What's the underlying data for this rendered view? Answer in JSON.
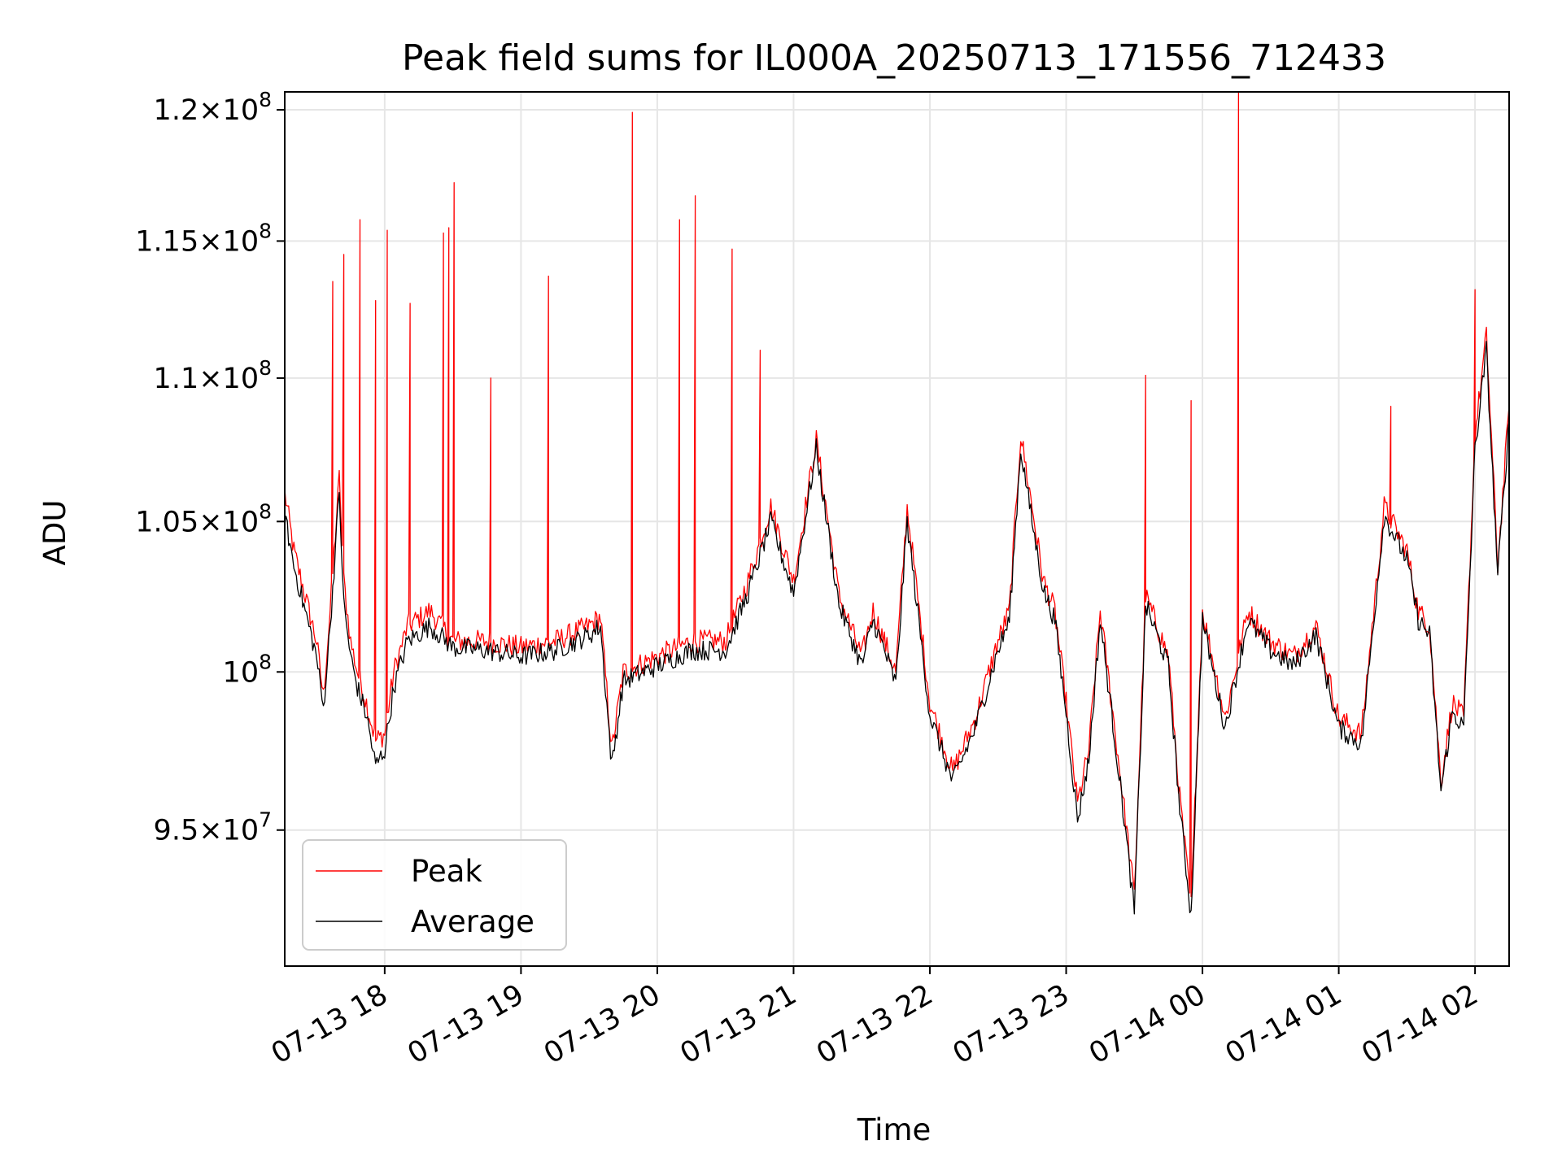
{
  "chart_data": {
    "type": "line",
    "title": "Peak field sums for IL000A_20250713_171556_712433",
    "xlabel": "Time",
    "ylabel": "ADU",
    "y_scale": "log",
    "xlim": [
      "2025-07-13 17:16",
      "2025-07-14 02:15"
    ],
    "ylim": [
      90900000,
      120700000
    ],
    "x_ticks": [
      "07-13 18",
      "07-13 19",
      "07-13 20",
      "07-13 21",
      "07-13 22",
      "07-13 23",
      "07-14 00",
      "07-14 01",
      "07-14 02"
    ],
    "y_ticks": [
      {
        "value": 95000000,
        "mantissa": "9.5",
        "times": "×",
        "base": "10",
        "exp": "7"
      },
      {
        "value": 100000000,
        "mantissa": "",
        "times": "",
        "base": "10",
        "exp": "8"
      },
      {
        "value": 105000000,
        "mantissa": "1.05",
        "times": "×",
        "base": "10",
        "exp": "8"
      },
      {
        "value": 110000000,
        "mantissa": "1.1",
        "times": "×",
        "base": "10",
        "exp": "8"
      },
      {
        "value": 115000000,
        "mantissa": "1.15",
        "times": "×",
        "base": "10",
        "exp": "8"
      },
      {
        "value": 120000000,
        "mantissa": "1.2",
        "times": "×",
        "base": "10",
        "exp": "8"
      }
    ],
    "grid": true,
    "legend_position": "lower-left",
    "series": [
      {
        "name": "Peak",
        "color": "#ff0000",
        "x": [
          "2025-07-13 17:16",
          "2025-07-13 17:20",
          "2025-07-13 17:25",
          "2025-07-13 17:30",
          "2025-07-13 17:33",
          "2025-07-13 17:36",
          "2025-07-13 17:40",
          "2025-07-13 17:42",
          "2025-07-13 17:45",
          "2025-07-13 17:48",
          "2025-07-13 17:52",
          "2025-07-13 17:56",
          "2025-07-13 18:00",
          "2025-07-13 18:04",
          "2025-07-13 18:10",
          "2025-07-13 18:20",
          "2025-07-13 18:30",
          "2025-07-13 18:45",
          "2025-07-13 19:00",
          "2025-07-13 19:15",
          "2025-07-13 19:30",
          "2025-07-13 19:35",
          "2025-07-13 19:40",
          "2025-07-13 19:45",
          "2025-07-13 20:00",
          "2025-07-13 20:15",
          "2025-07-13 20:30",
          "2025-07-13 20:40",
          "2025-07-13 20:50",
          "2025-07-13 21:00",
          "2025-07-13 21:10",
          "2025-07-13 21:20",
          "2025-07-13 21:30",
          "2025-07-13 21:35",
          "2025-07-13 21:40",
          "2025-07-13 21:45",
          "2025-07-13 21:50",
          "2025-07-13 22:00",
          "2025-07-13 22:10",
          "2025-07-13 22:20",
          "2025-07-13 22:30",
          "2025-07-13 22:35",
          "2025-07-13 22:40",
          "2025-07-13 22:45",
          "2025-07-13 22:50",
          "2025-07-13 22:55",
          "2025-07-13 23:00",
          "2025-07-13 23:05",
          "2025-07-13 23:10",
          "2025-07-13 23:15",
          "2025-07-13 23:20",
          "2025-07-13 23:25",
          "2025-07-13 23:30",
          "2025-07-13 23:35",
          "2025-07-13 23:40",
          "2025-07-13 23:45",
          "2025-07-13 23:50",
          "2025-07-13 23:55",
          "2025-07-14 00:00",
          "2025-07-14 00:10",
          "2025-07-14 00:20",
          "2025-07-14 00:30",
          "2025-07-14 00:40",
          "2025-07-14 00:50",
          "2025-07-14 01:00",
          "2025-07-14 01:10",
          "2025-07-14 01:20",
          "2025-07-14 01:30",
          "2025-07-14 01:35",
          "2025-07-14 01:40",
          "2025-07-14 01:45",
          "2025-07-14 01:50",
          "2025-07-14 01:55",
          "2025-07-14 02:00",
          "2025-07-14 02:05",
          "2025-07-14 02:10",
          "2025-07-14 02:15"
        ],
        "y": [
          106000000,
          104000000,
          102500000,
          101000000,
          99200000,
          102000000,
          106500000,
          103000000,
          101000000,
          100000000,
          99000000,
          97800000,
          98000000,
          100000000,
          101500000,
          102000000,
          101000000,
          101000000,
          100800000,
          101000000,
          101500000,
          101800000,
          97500000,
          100000000,
          100500000,
          101000000,
          101000000,
          103000000,
          105500000,
          103000000,
          107800000,
          102500000,
          100500000,
          102000000,
          101000000,
          100000000,
          105500000,
          99000000,
          96800000,
          98500000,
          101000000,
          102000000,
          108000000,
          105500000,
          103000000,
          102000000,
          99000000,
          95800000,
          97500000,
          102000000,
          99000000,
          96000000,
          93000000,
          102500000,
          101500000,
          100500000,
          96000000,
          92700000,
          102000000,
          98500000,
          102000000,
          101000000,
          100500000,
          101500000,
          98500000,
          98000000,
          105500000,
          104000000,
          102000000,
          101500000,
          96500000,
          99000000,
          98500000,
          108000000,
          111500000,
          103500000,
          109000000
        ]
      },
      {
        "name": "Average",
        "color": "#000000",
        "x": [
          "2025-07-13 17:16",
          "2025-07-13 17:20",
          "2025-07-13 17:25",
          "2025-07-13 17:30",
          "2025-07-13 17:33",
          "2025-07-13 17:36",
          "2025-07-13 17:40",
          "2025-07-13 17:42",
          "2025-07-13 17:45",
          "2025-07-13 17:48",
          "2025-07-13 17:52",
          "2025-07-13 17:56",
          "2025-07-13 18:00",
          "2025-07-13 18:04",
          "2025-07-13 18:10",
          "2025-07-13 18:20",
          "2025-07-13 18:30",
          "2025-07-13 18:45",
          "2025-07-13 19:00",
          "2025-07-13 19:15",
          "2025-07-13 19:30",
          "2025-07-13 19:35",
          "2025-07-13 19:40",
          "2025-07-13 19:45",
          "2025-07-13 20:00",
          "2025-07-13 20:15",
          "2025-07-13 20:30",
          "2025-07-13 20:40",
          "2025-07-13 20:50",
          "2025-07-13 21:00",
          "2025-07-13 21:10",
          "2025-07-13 21:20",
          "2025-07-13 21:30",
          "2025-07-13 21:35",
          "2025-07-13 21:40",
          "2025-07-13 21:45",
          "2025-07-13 21:50",
          "2025-07-13 22:00",
          "2025-07-13 22:10",
          "2025-07-13 22:20",
          "2025-07-13 22:30",
          "2025-07-13 22:35",
          "2025-07-13 22:40",
          "2025-07-13 22:45",
          "2025-07-13 22:50",
          "2025-07-13 22:55",
          "2025-07-13 23:00",
          "2025-07-13 23:05",
          "2025-07-13 23:10",
          "2025-07-13 23:15",
          "2025-07-13 23:20",
          "2025-07-13 23:25",
          "2025-07-13 23:30",
          "2025-07-13 23:35",
          "2025-07-13 23:40",
          "2025-07-13 23:45",
          "2025-07-13 23:50",
          "2025-07-13 23:55",
          "2025-07-14 00:00",
          "2025-07-14 00:10",
          "2025-07-14 00:20",
          "2025-07-14 00:30",
          "2025-07-14 00:40",
          "2025-07-14 00:50",
          "2025-07-14 01:00",
          "2025-07-14 01:10",
          "2025-07-14 01:20",
          "2025-07-14 01:30",
          "2025-07-14 01:35",
          "2025-07-14 01:40",
          "2025-07-14 01:45",
          "2025-07-14 01:50",
          "2025-07-14 01:55",
          "2025-07-14 02:00",
          "2025-07-14 02:05",
          "2025-07-14 02:10",
          "2025-07-14 02:15"
        ],
        "y": [
          105200000,
          103500000,
          102000000,
          100500000,
          98800000,
          101500000,
          106000000,
          102200000,
          100500000,
          99500000,
          98600000,
          97000000,
          97500000,
          99500000,
          101000000,
          101500000,
          100800000,
          100700000,
          100500000,
          100700000,
          101200000,
          101500000,
          97000000,
          99700000,
          100200000,
          100700000,
          100700000,
          102600000,
          105000000,
          102600000,
          107500000,
          102200000,
          100200000,
          101700000,
          100700000,
          99600000,
          105000000,
          98600000,
          96500000,
          98200000,
          100700000,
          101700000,
          107500000,
          105000000,
          102700000,
          101700000,
          98700000,
          95300000,
          97200000,
          101700000,
          98700000,
          95700000,
          92500000,
          102200000,
          101200000,
          100200000,
          95700000,
          92400000,
          101700000,
          98200000,
          101700000,
          100700000,
          100200000,
          101200000,
          98200000,
          97700000,
          105200000,
          103700000,
          101700000,
          101200000,
          96200000,
          98700000,
          98200000,
          107500000,
          111000000,
          103200000,
          108500000
        ]
      }
    ],
    "spikes": {
      "series": "Peak",
      "x": [
        "2025-07-13 17:37",
        "2025-07-13 17:42",
        "2025-07-13 17:49",
        "2025-07-13 17:56",
        "2025-07-13 18:01",
        "2025-07-13 18:11",
        "2025-07-13 18:26",
        "2025-07-13 18:28",
        "2025-07-13 18:31",
        "2025-07-13 18:47",
        "2025-07-13 19:12",
        "2025-07-13 19:49",
        "2025-07-13 20:10",
        "2025-07-13 20:17",
        "2025-07-13 20:33",
        "2025-07-13 20:45",
        "2025-07-13 23:35",
        "2025-07-13 23:55",
        "2025-07-14 00:16",
        "2025-07-14 01:23",
        "2025-07-14 02:00"
      ],
      "y": [
        113500000,
        114500000,
        115800000,
        112800000,
        115400000,
        112700000,
        115300000,
        115500000,
        117200000,
        110000000,
        113700000,
        119900000,
        115800000,
        116700000,
        114700000,
        111000000,
        110100000,
        109200000,
        120700000,
        109000000,
        113200000
      ]
    }
  }
}
